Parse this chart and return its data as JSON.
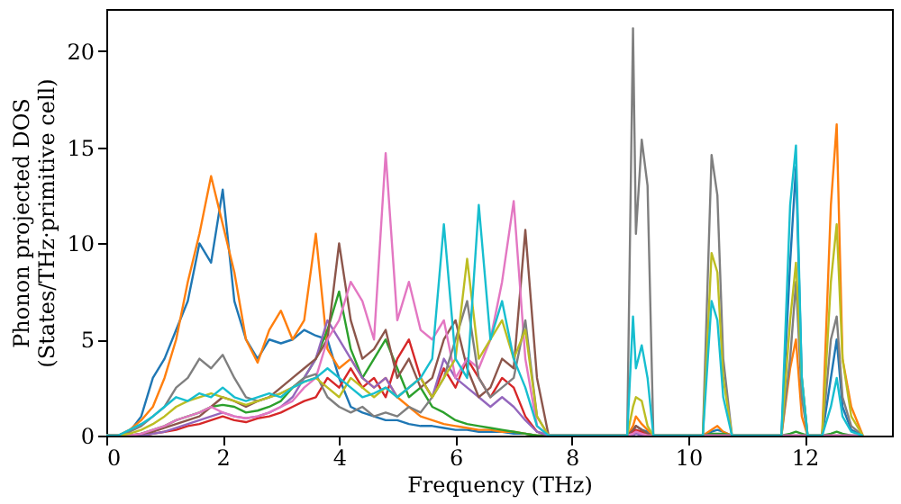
{
  "chart_data": {
    "type": "line",
    "xlabel": "Frequency (THz)",
    "ylabel": "Phonon projected DOS\n(States/THz·primitive cell)",
    "x": [
      0,
      0.2,
      0.4,
      0.6,
      0.8,
      1.0,
      1.2,
      1.4,
      1.6,
      1.8,
      2.0,
      2.2,
      2.4,
      2.6,
      2.8,
      3.0,
      3.2,
      3.4,
      3.6,
      3.8,
      4.0,
      4.2,
      4.4,
      4.6,
      4.8,
      5.0,
      5.2,
      5.4,
      5.6,
      5.8,
      6.0,
      6.2,
      6.4,
      6.6,
      6.8,
      7.0,
      7.2,
      7.4,
      7.6,
      8.95,
      9.05,
      9.1,
      9.2,
      9.3,
      9.4,
      10.25,
      10.4,
      10.5,
      10.6,
      10.75,
      11.6,
      11.75,
      11.85,
      11.95,
      12.05,
      12.3,
      12.45,
      12.55,
      12.65,
      12.8,
      13.0
    ],
    "series": [
      {
        "color": "#1f77b4",
        "values": [
          0,
          0,
          0.2,
          1.0,
          3.0,
          4.0,
          5.5,
          7.0,
          10.0,
          9.0,
          12.8,
          7.0,
          5.0,
          4.0,
          5.0,
          4.8,
          5.0,
          5.5,
          5.2,
          5.0,
          3.0,
          1.5,
          1.2,
          1.0,
          0.8,
          0.8,
          0.6,
          0.5,
          0.5,
          0.4,
          0.3,
          0.3,
          0.2,
          0.2,
          0.2,
          0.1,
          0.1,
          0,
          0,
          0,
          0.2,
          0.5,
          0.3,
          0.2,
          0,
          0,
          0.2,
          0.3,
          0.2,
          0,
          0,
          9.0,
          14.0,
          3.0,
          0,
          0,
          3.0,
          5.0,
          1.5,
          0.3,
          0
        ]
      },
      {
        "color": "#ff7f0e",
        "values": [
          0,
          0,
          0.3,
          0.8,
          1.5,
          3.0,
          5.0,
          8.0,
          10.5,
          13.5,
          11.0,
          8.5,
          5.0,
          3.8,
          5.5,
          6.5,
          5.0,
          6.0,
          10.5,
          4.5,
          3.5,
          4.0,
          3.0,
          2.5,
          3.0,
          2.0,
          1.5,
          1.0,
          0.8,
          0.6,
          0.5,
          0.4,
          0.3,
          0.3,
          0.2,
          0.2,
          0.1,
          0,
          0,
          0,
          0.5,
          1.0,
          0.6,
          0.3,
          0,
          0,
          0.3,
          0.5,
          0.2,
          0,
          0,
          3.5,
          5.0,
          1.0,
          0,
          0,
          12.0,
          16.2,
          4.0,
          1.5,
          0
        ]
      },
      {
        "color": "#2ca02c",
        "values": [
          0,
          0,
          0,
          0.1,
          0.3,
          0.5,
          0.8,
          1.0,
          1.2,
          1.5,
          1.6,
          1.5,
          1.2,
          1.3,
          1.5,
          1.8,
          2.5,
          3.0,
          4.0,
          5.5,
          7.5,
          4.5,
          3.0,
          4.0,
          5.0,
          3.5,
          2.0,
          2.5,
          1.5,
          1.2,
          0.8,
          0.6,
          0.5,
          0.4,
          0.3,
          0.2,
          0.1,
          0,
          0,
          0,
          0.1,
          0.2,
          0.1,
          0,
          0,
          0,
          0.1,
          0.1,
          0.1,
          0,
          0,
          0.1,
          0.2,
          0.1,
          0,
          0,
          0.1,
          0.2,
          0.1,
          0,
          0
        ]
      },
      {
        "color": "#d62728",
        "x": [
          0,
          0.2,
          0.4,
          0.6,
          0.8,
          1.0,
          1.2,
          1.4,
          1.6,
          1.8,
          2.0,
          2.2,
          2.4,
          2.6,
          2.8,
          3.0,
          3.2,
          3.4,
          3.6,
          3.8,
          4.0,
          4.2,
          4.4,
          4.6,
          4.8,
          5.0,
          5.2,
          5.4,
          5.6,
          5.8,
          6.0,
          6.2,
          6.4,
          6.6,
          6.8,
          7.0,
          7.2,
          7.4,
          7.6,
          8.95,
          9.05,
          9.1,
          9.2,
          9.3,
          9.4
        ],
        "values": [
          0,
          0,
          0,
          0,
          0.1,
          0.2,
          0.3,
          0.5,
          0.6,
          0.8,
          1.0,
          0.8,
          0.7,
          0.9,
          1.0,
          1.2,
          1.5,
          1.8,
          2.0,
          3.0,
          2.5,
          3.5,
          2.5,
          3.0,
          2.0,
          4.0,
          5.0,
          3.0,
          2.0,
          3.5,
          2.5,
          4.0,
          3.0,
          2.0,
          3.0,
          2.5,
          1.0,
          0.2,
          0,
          0,
          0.2,
          0.3,
          0.2,
          0,
          0
        ]
      },
      {
        "color": "#9467bd",
        "values": [
          0,
          0,
          0,
          0,
          0.1,
          0.2,
          0.4,
          0.6,
          0.8,
          1.0,
          1.2,
          1.0,
          0.9,
          1.0,
          1.2,
          1.5,
          2.0,
          3.0,
          4.0,
          6.0,
          5.0,
          4.0,
          3.0,
          2.5,
          3.0,
          2.0,
          2.5,
          3.0,
          2.0,
          4.0,
          3.0,
          2.5,
          2.0,
          1.5,
          2.0,
          1.5,
          0.8,
          0.2,
          0,
          0,
          0,
          0.1,
          0,
          0,
          0,
          0,
          0,
          0,
          0,
          0,
          0,
          0,
          0,
          0,
          0,
          0,
          0,
          0,
          0,
          0,
          0
        ]
      },
      {
        "color": "#8c564b",
        "values": [
          0,
          0,
          0,
          0.1,
          0.2,
          0.4,
          0.6,
          0.8,
          1.0,
          1.5,
          2.0,
          1.8,
          1.5,
          1.8,
          2.0,
          2.5,
          3.0,
          3.5,
          4.0,
          5.0,
          10.0,
          6.0,
          4.0,
          4.5,
          5.5,
          3.0,
          4.0,
          2.5,
          3.0,
          5.0,
          6.0,
          3.5,
          2.0,
          2.5,
          4.0,
          3.5,
          10.7,
          3.0,
          0,
          0,
          0.3,
          0.5,
          0.3,
          0.1,
          0,
          0,
          0,
          0,
          0,
          0,
          0,
          0,
          0,
          0,
          0,
          0,
          0,
          0,
          0,
          0,
          0
        ]
      },
      {
        "color": "#e377c2",
        "values": [
          0,
          0,
          0,
          0.1,
          0.3,
          0.5,
          0.8,
          1.0,
          1.2,
          1.5,
          1.2,
          1.0,
          0.9,
          1.0,
          1.2,
          1.5,
          1.8,
          2.5,
          3.0,
          5.0,
          6.0,
          8.0,
          7.0,
          5.0,
          14.7,
          6.0,
          8.0,
          5.5,
          5.0,
          6.0,
          3.0,
          4.0,
          3.5,
          5.0,
          8.0,
          12.2,
          4.0,
          0.5,
          0,
          0,
          0.1,
          0.2,
          0.1,
          0,
          0,
          0,
          0,
          0,
          0,
          0,
          0,
          0,
          0,
          0,
          0,
          0,
          0,
          0,
          0,
          0,
          0
        ]
      },
      {
        "color": "#7f7f7f",
        "values": [
          0,
          0,
          0.2,
          0.5,
          1.0,
          1.5,
          2.5,
          3.0,
          4.0,
          3.5,
          4.2,
          3.0,
          2.0,
          1.8,
          2.0,
          2.2,
          2.5,
          3.0,
          3.2,
          2.0,
          1.5,
          1.2,
          1.5,
          1.0,
          1.2,
          1.0,
          1.5,
          1.2,
          2.0,
          3.0,
          5.0,
          7.0,
          3.0,
          2.0,
          2.5,
          3.0,
          6.0,
          1.0,
          0,
          0,
          21.2,
          10.5,
          15.4,
          13.0,
          0,
          0,
          14.6,
          12.5,
          4.0,
          0,
          0,
          4.0,
          8.0,
          2.0,
          0,
          0,
          5.0,
          6.2,
          2.0,
          0.5,
          0
        ]
      },
      {
        "color": "#bcbd22",
        "values": [
          0,
          0,
          0.1,
          0.3,
          0.6,
          1.0,
          1.5,
          1.8,
          2.0,
          2.2,
          2.0,
          1.8,
          1.6,
          1.8,
          2.0,
          2.2,
          2.5,
          2.8,
          3.0,
          2.5,
          2.0,
          3.0,
          2.5,
          2.0,
          2.5,
          2.0,
          2.5,
          3.0,
          2.0,
          3.0,
          4.0,
          9.2,
          4.0,
          5.0,
          6.0,
          4.0,
          5.5,
          1.0,
          0,
          0,
          1.5,
          2.0,
          1.8,
          0.5,
          0,
          0,
          9.5,
          8.5,
          3.0,
          0,
          0,
          6.0,
          9.0,
          3.0,
          0,
          0,
          8.0,
          11.0,
          4.0,
          1.0,
          0
        ]
      },
      {
        "color": "#17becf",
        "values": [
          0,
          0,
          0.3,
          0.6,
          1.0,
          1.5,
          2.0,
          1.8,
          2.2,
          2.0,
          2.5,
          2.0,
          1.8,
          2.0,
          2.2,
          2.0,
          2.5,
          2.8,
          3.0,
          3.5,
          3.0,
          2.5,
          2.0,
          2.2,
          2.5,
          2.0,
          2.5,
          3.0,
          4.0,
          11.0,
          4.0,
          3.0,
          12.0,
          5.0,
          7.0,
          4.0,
          2.5,
          0.5,
          0,
          0,
          6.2,
          3.5,
          4.7,
          3.0,
          0,
          0,
          7.0,
          6.0,
          2.0,
          0,
          0,
          12.0,
          15.1,
          3.0,
          0,
          0,
          1.5,
          3.0,
          1.0,
          0.2,
          0
        ]
      }
    ],
    "xlim": [
      0,
      13.5
    ],
    "ylim": [
      0,
      22.2
    ],
    "xticks": [
      0,
      2,
      4,
      6,
      8,
      10,
      12
    ],
    "yticks": [
      0,
      5,
      10,
      15,
      20
    ],
    "grid": false,
    "legend": false
  }
}
